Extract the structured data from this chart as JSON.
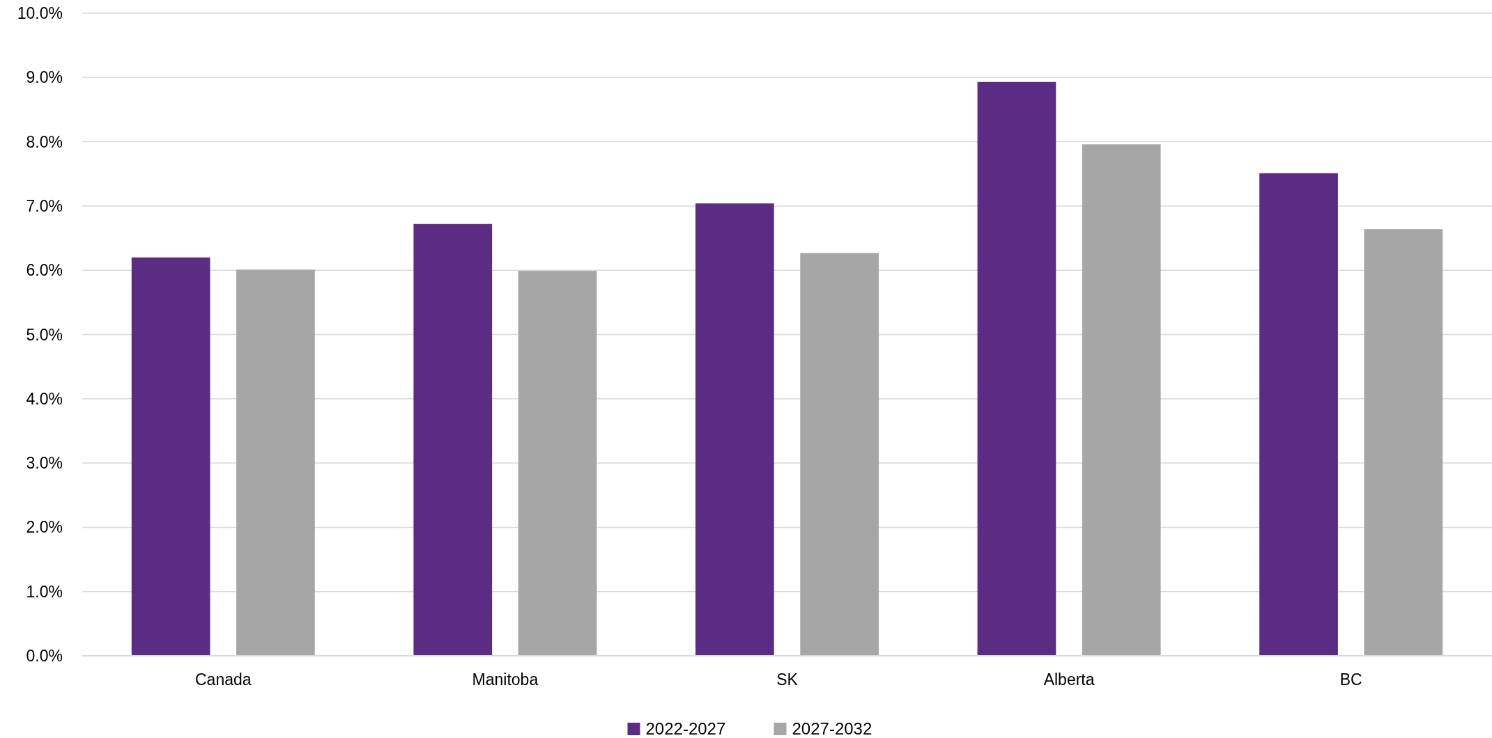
{
  "chart_data": {
    "type": "bar",
    "categories": [
      "Canada",
      "Manitoba",
      "SK",
      "Alberta",
      "BC"
    ],
    "series": [
      {
        "name": "2022-2027",
        "color": "#5b2c83",
        "values": [
          6.2,
          6.72,
          7.04,
          8.93,
          7.51
        ]
      },
      {
        "name": "2027-2032",
        "color": "#a6a6a6",
        "values": [
          6.01,
          5.99,
          6.27,
          7.96,
          6.64
        ]
      }
    ],
    "ylim": [
      0,
      10
    ],
    "yticks": [
      {
        "value": 0,
        "label": "0.0%"
      },
      {
        "value": 1,
        "label": "1.0%"
      },
      {
        "value": 2,
        "label": "2.0%"
      },
      {
        "value": 3,
        "label": "3.0%"
      },
      {
        "value": 4,
        "label": "4.0%"
      },
      {
        "value": 5,
        "label": "5.0%"
      },
      {
        "value": 6,
        "label": "6.0%"
      },
      {
        "value": 7,
        "label": "7.0%"
      },
      {
        "value": 8,
        "label": "8.0%"
      },
      {
        "value": 9,
        "label": "9.0%"
      },
      {
        "value": 10,
        "label": "10.0%"
      }
    ],
    "grid": "y",
    "legend": "bottom"
  }
}
